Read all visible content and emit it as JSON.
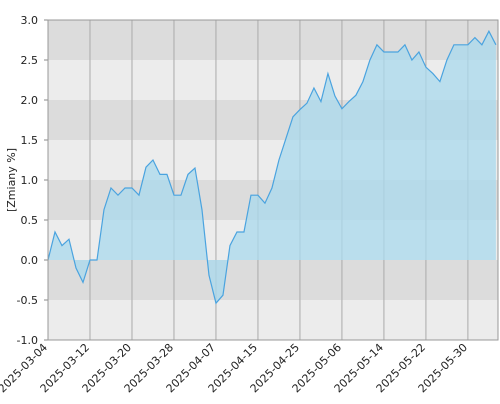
{
  "chart_data": {
    "type": "area",
    "y_label": "[Zmiany %]",
    "x": [
      "2025-03-04",
      "2025-03-05",
      "2025-03-06",
      "2025-03-07",
      "2025-03-10",
      "2025-03-11",
      "2025-03-12",
      "2025-03-13",
      "2025-03-14",
      "2025-03-17",
      "2025-03-18",
      "2025-03-19",
      "2025-03-20",
      "2025-03-21",
      "2025-03-24",
      "2025-03-25",
      "2025-03-26",
      "2025-03-27",
      "2025-03-28",
      "2025-03-31",
      "2025-04-01",
      "2025-04-02",
      "2025-04-03",
      "2025-04-04",
      "2025-04-07",
      "2025-04-08",
      "2025-04-09",
      "2025-04-10",
      "2025-04-11",
      "2025-04-14",
      "2025-04-15",
      "2025-04-16",
      "2025-04-17",
      "2025-04-22",
      "2025-04-23",
      "2025-04-24",
      "2025-04-25",
      "2025-04-28",
      "2025-04-29",
      "2025-04-30",
      "2025-05-02",
      "2025-05-05",
      "2025-05-06",
      "2025-05-07",
      "2025-05-08",
      "2025-05-09",
      "2025-05-12",
      "2025-05-13",
      "2025-05-14",
      "2025-05-15",
      "2025-05-16",
      "2025-05-19",
      "2025-05-20",
      "2025-05-21",
      "2025-05-22",
      "2025-05-23",
      "2025-05-26",
      "2025-05-27",
      "2025-05-28",
      "2025-05-29",
      "2025-05-30",
      "2025-06-02",
      "2025-06-03",
      "2025-06-04",
      "2025-06-05"
    ],
    "values": [
      0.0,
      0.35,
      0.18,
      0.26,
      -0.1,
      -0.28,
      0.0,
      0.0,
      0.63,
      0.9,
      0.81,
      0.9,
      0.9,
      0.81,
      1.16,
      1.25,
      1.07,
      1.07,
      0.81,
      0.81,
      1.07,
      1.15,
      0.63,
      -0.19,
      -0.54,
      -0.44,
      0.18,
      0.35,
      0.35,
      0.81,
      0.81,
      0.71,
      0.9,
      1.25,
      1.52,
      1.79,
      1.88,
      1.96,
      2.15,
      1.98,
      2.33,
      2.05,
      1.89,
      1.98,
      2.06,
      2.23,
      2.5,
      2.69,
      2.6,
      2.6,
      2.6,
      2.69,
      2.5,
      2.6,
      2.41,
      2.33,
      2.23,
      2.5,
      2.69,
      2.69,
      2.69,
      2.78,
      2.69,
      2.86,
      2.69
    ],
    "xticks": [
      "2025-03-04",
      "2025-03-12",
      "2025-03-20",
      "2025-03-28",
      "2025-04-07",
      "2025-04-15",
      "2025-04-25",
      "2025-05-06",
      "2025-05-14",
      "2025-05-22",
      "2025-05-30"
    ],
    "ylim": [
      -1,
      3
    ],
    "yticks": [
      {
        "value": -1,
        "label": "-1.0"
      },
      -0.5,
      {
        "value": 0,
        "label": "0.0"
      },
      0.5,
      {
        "value": 1,
        "label": "1.0"
      },
      1.5,
      {
        "value": 2,
        "label": "2.0"
      },
      2.5,
      {
        "value": 3,
        "label": "3.0"
      }
    ],
    "color": "#4aa3df",
    "fill": "#a9d9ee",
    "grid": true
  }
}
